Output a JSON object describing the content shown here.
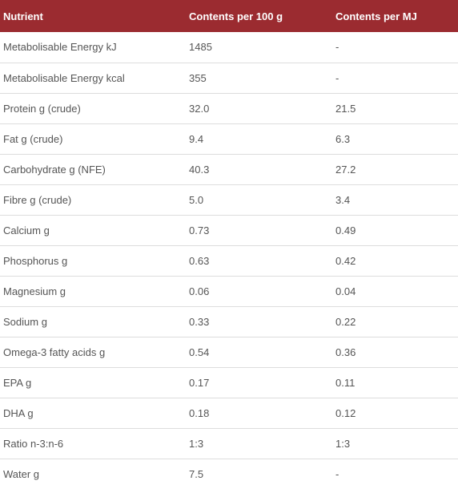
{
  "table": {
    "headers": [
      "Nutrient",
      "Contents per 100 g",
      "Contents per MJ"
    ],
    "rows": [
      [
        "Metabolisable Energy kJ",
        "1485",
        "-"
      ],
      [
        "Metabolisable Energy kcal",
        "355",
        "-"
      ],
      [
        "Protein g (crude)",
        "32.0",
        "21.5"
      ],
      [
        "Fat g (crude)",
        "9.4",
        "6.3"
      ],
      [
        "Carbohydrate g (NFE)",
        "40.3",
        "27.2"
      ],
      [
        "Fibre g (crude)",
        "5.0",
        "3.4"
      ],
      [
        "Calcium g",
        "0.73",
        "0.49"
      ],
      [
        "Phosphorus g",
        "0.63",
        "0.42"
      ],
      [
        "Magnesium g",
        "0.06",
        "0.04"
      ],
      [
        "Sodium g",
        "0.33",
        "0.22"
      ],
      [
        "Omega-3 fatty acids g",
        "0.54",
        "0.36"
      ],
      [
        "EPA g",
        "0.17",
        "0.11"
      ],
      [
        "DHA g",
        "0.18",
        "0.12"
      ],
      [
        "Ratio n-3:n-6",
        "1:3",
        "1:3"
      ],
      [
        "Water g",
        "7.5",
        "-"
      ]
    ],
    "colors": {
      "header_background": "#9b2b30",
      "header_text": "#ffffff",
      "cell_text": "#555555",
      "row_divider": "#dddddd"
    }
  }
}
